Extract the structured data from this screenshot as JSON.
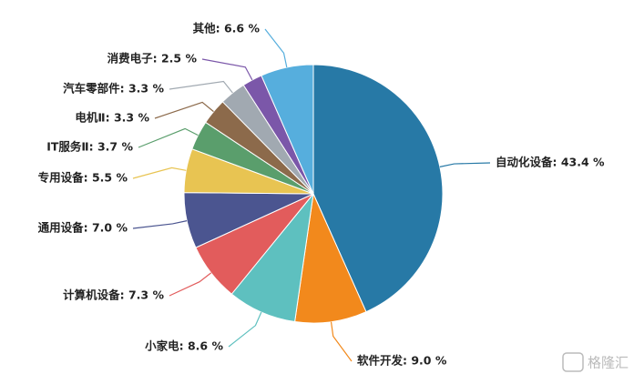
{
  "chart_data": {
    "type": "pie",
    "values": [
      43.4,
      9.0,
      8.6,
      7.3,
      7.0,
      5.5,
      3.7,
      3.3,
      3.3,
      2.5,
      6.6
    ],
    "value_labels": [
      "自动化设备: 43.4 %",
      "软件开发: 9.0 %",
      "小家电: 8.6 %",
      "计算机设备: 7.3 %",
      "通用设备: 7.0 %",
      "专用设备: 5.5 %",
      "IT服务Ⅱ: 3.7 %",
      "电机Ⅱ: 3.3 %",
      "汽车零部件: 3.3 %",
      "消费电子: 2.5 %",
      "其他: 6.6 %"
    ],
    "colors": [
      "#2779a6",
      "#f2891c",
      "#5ec0bf",
      "#e25c5c",
      "#4b5590",
      "#e8c452",
      "#5a9e6c",
      "#8c6a4b",
      "#a1a9b1",
      "#7b57a9",
      "#56aedd"
    ],
    "watermark": "格隆汇"
  }
}
